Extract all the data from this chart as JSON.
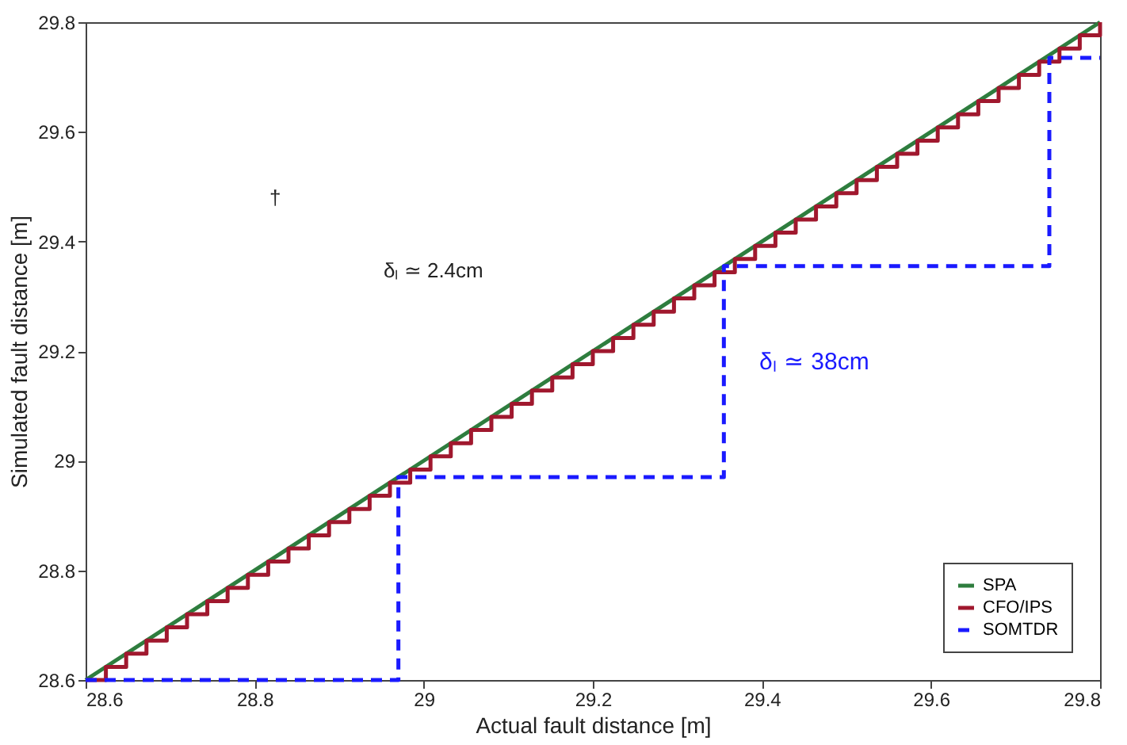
{
  "chart_data": {
    "type": "line",
    "xlabel": "Actual fault distance [m]",
    "ylabel": "Simulated fault distance [m]",
    "xlim": [
      28.6,
      29.8
    ],
    "ylim": [
      28.6,
      29.8
    ],
    "xticks": [
      28.6,
      28.8,
      29,
      29.2,
      29.4,
      29.6,
      29.8
    ],
    "yticks": [
      28.6,
      28.8,
      29,
      29.2,
      29.4,
      29.6,
      29.8
    ],
    "grid": false,
    "legend": "bottom right",
    "series": [
      {
        "name": "SPA",
        "color": "#2e7d3e",
        "line_style": "solid",
        "x": [
          28.6,
          29.8
        ],
        "values": [
          28.6,
          29.8
        ]
      },
      {
        "name": "CFO/IPS",
        "type": "step",
        "color": "#a0182e",
        "line_style": "solid",
        "x": [
          28.6,
          28.624,
          28.648,
          28.672,
          28.696,
          28.72,
          28.744,
          28.768,
          28.792,
          28.816,
          28.84,
          28.864,
          28.888,
          28.912,
          28.936,
          28.96,
          28.984,
          29.008,
          29.032,
          29.056,
          29.08,
          29.104,
          29.128,
          29.152,
          29.176,
          29.2,
          29.224,
          29.248,
          29.272,
          29.296,
          29.32,
          29.344,
          29.368,
          29.392,
          29.416,
          29.44,
          29.464,
          29.488,
          29.512,
          29.536,
          29.56,
          29.584,
          29.608,
          29.632,
          29.656,
          29.68,
          29.704,
          29.728,
          29.752,
          29.776,
          29.8
        ],
        "values": [
          28.6,
          28.624,
          28.648,
          28.672,
          28.696,
          28.72,
          28.744,
          28.768,
          28.792,
          28.816,
          28.84,
          28.864,
          28.888,
          28.912,
          28.936,
          28.96,
          28.984,
          29.008,
          29.032,
          29.056,
          29.08,
          29.104,
          29.128,
          29.152,
          29.176,
          29.2,
          29.224,
          29.248,
          29.272,
          29.296,
          29.32,
          29.344,
          29.368,
          29.392,
          29.416,
          29.44,
          29.464,
          29.488,
          29.512,
          29.536,
          29.56,
          29.584,
          29.608,
          29.632,
          29.656,
          29.68,
          29.704,
          29.728,
          29.752,
          29.776,
          29.8
        ]
      },
      {
        "name": "SOMTDR",
        "type": "step",
        "color": "#1a1aff",
        "line_style": "dashed",
        "x": [
          28.6,
          28.97,
          29.355,
          29.74,
          29.8
        ],
        "values": [
          28.6,
          28.97,
          29.355,
          29.735,
          29.735
        ]
      }
    ],
    "annotations": [
      "δₗ ≃ 38cm",
      "†",
      "δₗ ≃ 2.4cm"
    ]
  }
}
